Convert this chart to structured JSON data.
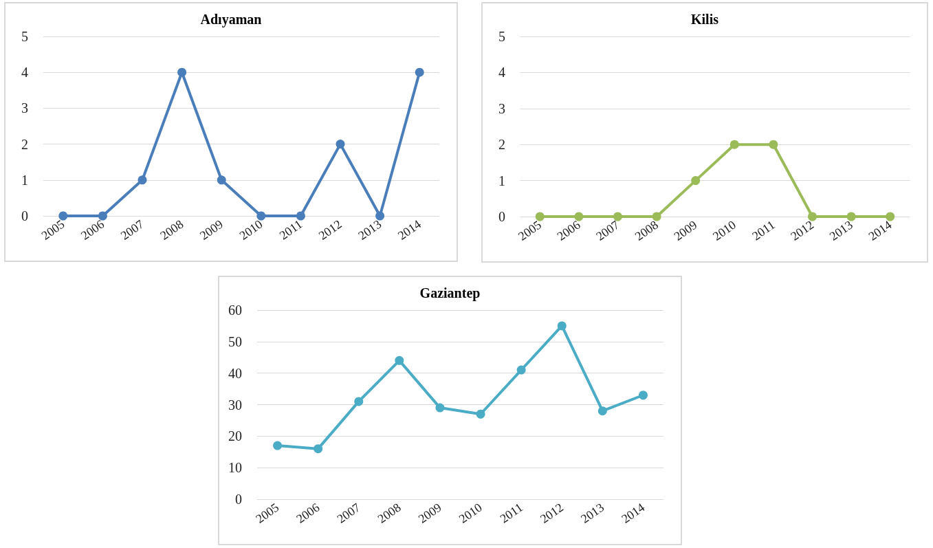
{
  "chart_data": [
    {
      "type": "line",
      "title": "Adıyaman",
      "categories": [
        "2005",
        "2006",
        "2007",
        "2008",
        "2009",
        "2010",
        "2011",
        "2012",
        "2013",
        "2014"
      ],
      "values": [
        0,
        0,
        1,
        4,
        1,
        0,
        0,
        2,
        0,
        4
      ],
      "color": "#4a7ebb",
      "ylim": [
        0,
        5
      ],
      "yticks": [
        0,
        1,
        2,
        3,
        4,
        5
      ],
      "grid": "y",
      "marker": "circle"
    },
    {
      "type": "line",
      "title": "Kilis",
      "categories": [
        "2005",
        "2006",
        "2007",
        "2008",
        "2009",
        "2010",
        "2011",
        "2012",
        "2013",
        "2014"
      ],
      "values": [
        0,
        0,
        0,
        0,
        1,
        2,
        2,
        0,
        0,
        0
      ],
      "color": "#9bbb59",
      "ylim": [
        0,
        5
      ],
      "yticks": [
        0,
        1,
        2,
        3,
        4,
        5
      ],
      "grid": "y",
      "marker": "circle"
    },
    {
      "type": "line",
      "title": "Gaziantep",
      "categories": [
        "2005",
        "2006",
        "2007",
        "2008",
        "2009",
        "2010",
        "2011",
        "2012",
        "2013",
        "2014"
      ],
      "values": [
        17,
        16,
        31,
        44,
        29,
        27,
        41,
        55,
        28,
        33
      ],
      "color": "#4bacc6",
      "ylim": [
        0,
        60
      ],
      "yticks": [
        0,
        10,
        20,
        30,
        40,
        50,
        60
      ],
      "grid": "y",
      "marker": "circle"
    }
  ]
}
